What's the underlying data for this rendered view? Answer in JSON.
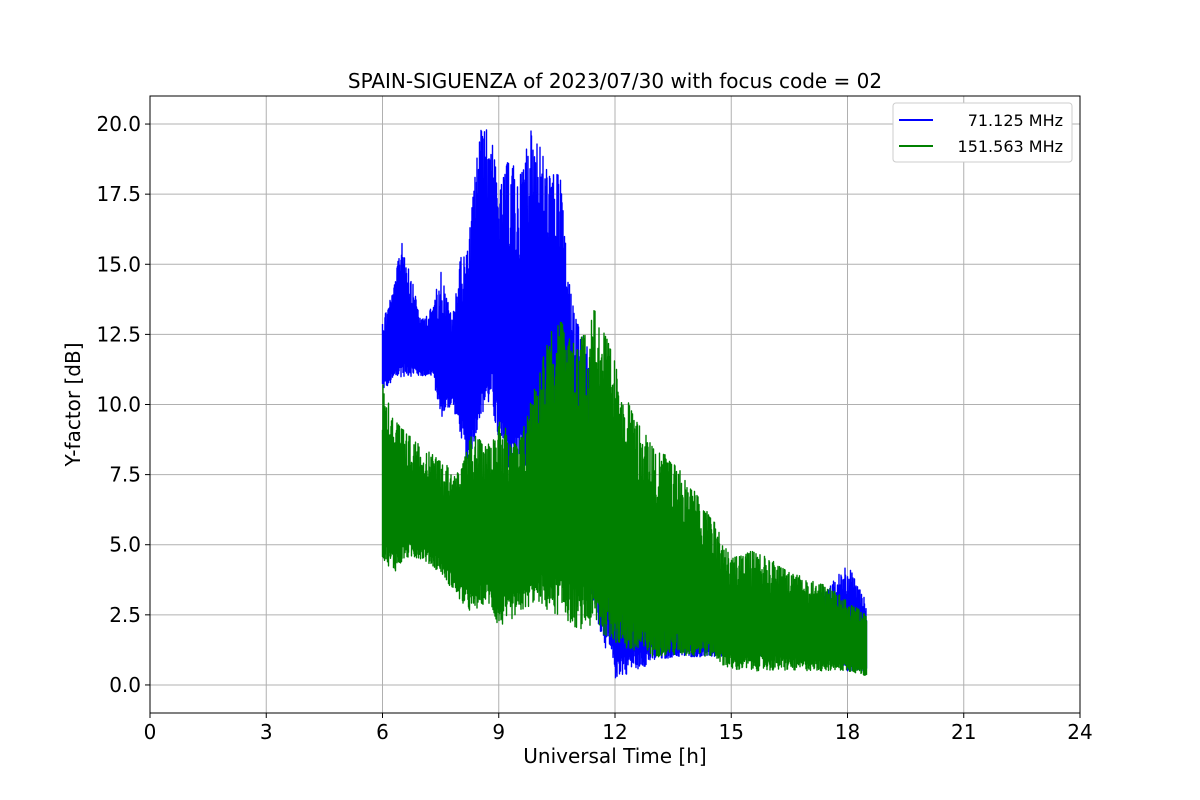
{
  "chart_data": {
    "type": "line",
    "title": "SPAIN-SIGUENZA of 2023/07/30 with focus code = 02",
    "xlabel": "Universal Time [h]",
    "ylabel": "Y-factor [dB]",
    "xlim": [
      0,
      24
    ],
    "ylim": [
      -1.0,
      21.0
    ],
    "xticks": [
      0,
      3,
      6,
      9,
      12,
      15,
      18,
      21,
      24
    ],
    "xtick_labels": [
      "0",
      "3",
      "6",
      "9",
      "12",
      "15",
      "18",
      "21",
      "24"
    ],
    "yticks": [
      0.0,
      2.5,
      5.0,
      7.5,
      10.0,
      12.5,
      15.0,
      17.5,
      20.0
    ],
    "ytick_labels": [
      "0.0",
      "2.5",
      "5.0",
      "7.5",
      "10.0",
      "12.5",
      "15.0",
      "17.5",
      "20.0"
    ],
    "grid": true,
    "legend_position": "top-right",
    "series": [
      {
        "name": "71.125 MHz",
        "color": "#0000ff",
        "band": [
          {
            "x": 6.0,
            "low": 10.5,
            "high": 13.0
          },
          {
            "x": 6.3,
            "low": 10.8,
            "high": 14.2
          },
          {
            "x": 6.5,
            "low": 11.0,
            "high": 16.0
          },
          {
            "x": 7.0,
            "low": 11.0,
            "high": 13.0
          },
          {
            "x": 7.3,
            "low": 11.0,
            "high": 13.5
          },
          {
            "x": 7.5,
            "low": 9.5,
            "high": 14.8
          },
          {
            "x": 7.8,
            "low": 10.0,
            "high": 13.0
          },
          {
            "x": 8.0,
            "low": 9.0,
            "high": 15.2
          },
          {
            "x": 8.2,
            "low": 7.5,
            "high": 15.5
          },
          {
            "x": 8.5,
            "low": 9.5,
            "high": 19.8
          },
          {
            "x": 8.8,
            "low": 10.0,
            "high": 19.8
          },
          {
            "x": 9.0,
            "low": 8.5,
            "high": 17.5
          },
          {
            "x": 9.3,
            "low": 7.5,
            "high": 19.0
          },
          {
            "x": 9.5,
            "low": 8.0,
            "high": 17.8
          },
          {
            "x": 9.8,
            "low": 7.0,
            "high": 19.8
          },
          {
            "x": 10.0,
            "low": 7.5,
            "high": 19.5
          },
          {
            "x": 10.3,
            "low": 8.0,
            "high": 18.2
          },
          {
            "x": 10.6,
            "low": 7.5,
            "high": 18.2
          },
          {
            "x": 10.8,
            "low": 6.0,
            "high": 14.5
          },
          {
            "x": 11.0,
            "low": 4.5,
            "high": 13.0
          },
          {
            "x": 11.3,
            "low": 3.5,
            "high": 12.0
          },
          {
            "x": 11.6,
            "low": 2.0,
            "high": 11.0
          },
          {
            "x": 12.0,
            "low": 0.2,
            "high": 8.0
          },
          {
            "x": 12.5,
            "low": 0.5,
            "high": 6.5
          },
          {
            "x": 13.0,
            "low": 0.8,
            "high": 5.0
          },
          {
            "x": 13.5,
            "low": 1.0,
            "high": 3.0
          },
          {
            "x": 14.0,
            "low": 1.0,
            "high": 3.0
          },
          {
            "x": 15.0,
            "low": 1.0,
            "high": 2.5
          },
          {
            "x": 16.0,
            "low": 1.0,
            "high": 2.5
          },
          {
            "x": 17.0,
            "low": 1.0,
            "high": 3.0
          },
          {
            "x": 17.5,
            "low": 1.0,
            "high": 3.5
          },
          {
            "x": 18.0,
            "low": 0.5,
            "high": 4.3
          },
          {
            "x": 18.3,
            "low": 0.5,
            "high": 3.5
          },
          {
            "x": 18.5,
            "low": 0.5,
            "high": 3.0
          }
        ]
      },
      {
        "name": "151.563 MHz",
        "color": "#008000",
        "band": [
          {
            "x": 6.0,
            "low": 4.5,
            "high": 10.8
          },
          {
            "x": 6.3,
            "low": 4.0,
            "high": 9.5
          },
          {
            "x": 6.6,
            "low": 4.5,
            "high": 9.0
          },
          {
            "x": 7.0,
            "low": 4.5,
            "high": 8.5
          },
          {
            "x": 7.5,
            "low": 4.0,
            "high": 8.0
          },
          {
            "x": 8.0,
            "low": 3.0,
            "high": 7.5
          },
          {
            "x": 8.3,
            "low": 2.5,
            "high": 9.0
          },
          {
            "x": 8.7,
            "low": 3.0,
            "high": 8.5
          },
          {
            "x": 9.0,
            "low": 2.0,
            "high": 9.5
          },
          {
            "x": 9.5,
            "low": 2.5,
            "high": 8.5
          },
          {
            "x": 10.0,
            "low": 3.0,
            "high": 11.0
          },
          {
            "x": 10.3,
            "low": 2.5,
            "high": 12.5
          },
          {
            "x": 10.6,
            "low": 2.5,
            "high": 13.0
          },
          {
            "x": 11.0,
            "low": 2.0,
            "high": 12.0
          },
          {
            "x": 11.5,
            "low": 2.0,
            "high": 13.5
          },
          {
            "x": 12.0,
            "low": 1.5,
            "high": 11.5
          },
          {
            "x": 12.5,
            "low": 1.0,
            "high": 9.5
          },
          {
            "x": 13.0,
            "low": 1.0,
            "high": 8.5
          },
          {
            "x": 13.5,
            "low": 1.0,
            "high": 8.0
          },
          {
            "x": 14.0,
            "low": 1.0,
            "high": 7.0
          },
          {
            "x": 14.5,
            "low": 1.0,
            "high": 6.0
          },
          {
            "x": 15.0,
            "low": 0.5,
            "high": 4.5
          },
          {
            "x": 15.5,
            "low": 0.5,
            "high": 4.8
          },
          {
            "x": 16.0,
            "low": 0.5,
            "high": 4.5
          },
          {
            "x": 16.5,
            "low": 0.5,
            "high": 4.0
          },
          {
            "x": 17.0,
            "low": 0.5,
            "high": 3.8
          },
          {
            "x": 17.5,
            "low": 0.5,
            "high": 3.5
          },
          {
            "x": 18.0,
            "low": 0.5,
            "high": 3.0
          },
          {
            "x": 18.5,
            "low": 0.3,
            "high": 2.5
          }
        ]
      }
    ]
  }
}
